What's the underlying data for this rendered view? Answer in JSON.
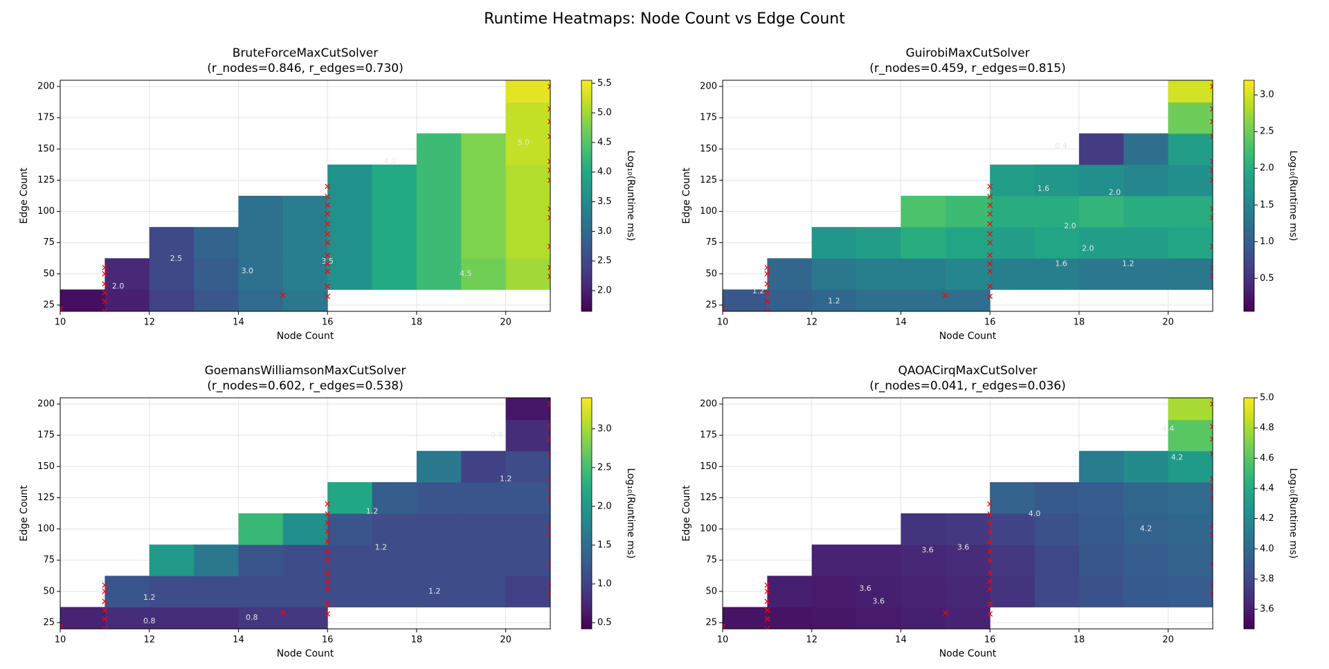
{
  "title": "Runtime Heatmaps: Node Count vs Edge Count",
  "chart_data": [
    {
      "type": "heatmap",
      "title": "BruteForceMaxCutSolver",
      "subtitle": "(r_nodes=0.846, r_edges=0.730)",
      "xlabel": "Node Count",
      "ylabel": "Edge Count",
      "colorbar_label": "Log₁₀(Runtime ms)",
      "colormap": "viridis",
      "grid": true,
      "xlim": [
        10,
        21
      ],
      "ylim": [
        20,
        205
      ],
      "xticks": [
        10,
        12,
        14,
        16,
        18,
        20
      ],
      "yticks": [
        25,
        50,
        75,
        100,
        125,
        150,
        175,
        200
      ],
      "zlim": [
        1.65,
        5.55
      ],
      "zticks": [
        {
          "value": 2,
          "label": "2.0"
        },
        2.5,
        {
          "value": 3,
          "label": "3.0"
        },
        3.5,
        {
          "value": 4,
          "label": "4.0"
        },
        4.5,
        {
          "value": 5,
          "label": "5.0"
        },
        5.5
      ],
      "x": [
        10.5,
        11.5,
        12.5,
        13.5,
        14.5,
        15.5,
        16.5,
        17.5,
        18.5,
        19.5,
        20.5
      ],
      "y": [
        25,
        50,
        75,
        100,
        125,
        150,
        175,
        200
      ],
      "z": [
        [
          1.8,
          2.0,
          2.4,
          2.7,
          3.0,
          3.2,
          null,
          null,
          null,
          null,
          null
        ],
        [
          null,
          2.1,
          2.5,
          2.8,
          3.1,
          3.3,
          3.6,
          4.0,
          4.3,
          4.7,
          5.0
        ],
        [
          null,
          null,
          2.5,
          2.9,
          3.1,
          3.3,
          3.6,
          4.0,
          4.3,
          4.8,
          5.1
        ],
        [
          null,
          null,
          null,
          null,
          3.1,
          3.3,
          3.6,
          4.0,
          4.3,
          4.8,
          5.1
        ],
        [
          null,
          null,
          null,
          null,
          null,
          null,
          3.6,
          4.0,
          4.3,
          4.8,
          5.1
        ],
        [
          null,
          null,
          null,
          null,
          null,
          null,
          null,
          null,
          4.3,
          4.8,
          5.2
        ],
        [
          null,
          null,
          null,
          null,
          null,
          null,
          null,
          null,
          null,
          null,
          5.2
        ],
        [
          null,
          null,
          null,
          null,
          null,
          null,
          null,
          null,
          null,
          null,
          5.4
        ]
      ],
      "contour_labels": [
        {
          "x": 11.3,
          "y": 40,
          "label": "2.0"
        },
        {
          "x": 12.6,
          "y": 62,
          "label": "2.5"
        },
        {
          "x": 14.2,
          "y": 52,
          "label": "3.0"
        },
        {
          "x": 16.0,
          "y": 60,
          "label": "3.5"
        },
        {
          "x": 17.4,
          "y": 140,
          "label": "4.0"
        },
        {
          "x": 19.1,
          "y": 50,
          "label": "4.5"
        },
        {
          "x": 20.4,
          "y": 155,
          "label": "5.0"
        }
      ],
      "samples": {
        "color": "red",
        "x": [
          10,
          11,
          11,
          11,
          11,
          11,
          11,
          15,
          16,
          16,
          16,
          16,
          16,
          16,
          16,
          16,
          16,
          16,
          16,
          16,
          21,
          21,
          21,
          21,
          21,
          21,
          21,
          21,
          21,
          21,
          21,
          21
        ],
        "y": [
          22,
          20,
          28,
          35,
          42,
          50,
          55,
          33,
          32,
          40,
          52,
          58,
          65,
          75,
          82,
          90,
          98,
          105,
          112,
          120,
          48,
          55,
          72,
          95,
          102,
          125,
          133,
          140,
          160,
          172,
          182,
          200
        ]
      }
    },
    {
      "type": "heatmap",
      "title": "GuirobiMaxCutSolver",
      "subtitle": "(r_nodes=0.459, r_edges=0.815)",
      "xlabel": "Node Count",
      "ylabel": "Edge Count",
      "colorbar_label": "Log₁₀(Runtime ms)",
      "colormap": "viridis",
      "grid": true,
      "xlim": [
        10,
        21
      ],
      "ylim": [
        20,
        205
      ],
      "xticks": [
        10,
        12,
        14,
        16,
        18,
        20
      ],
      "yticks": [
        25,
        50,
        75,
        100,
        125,
        150,
        175,
        200
      ],
      "zlim": [
        0.05,
        3.2
      ],
      "zticks": [
        0.5,
        {
          "value": 1,
          "label": "1.0"
        },
        1.5,
        {
          "value": 2,
          "label": "2.0"
        },
        2.5,
        {
          "value": 3,
          "label": "3.0"
        }
      ],
      "x": [
        10.5,
        11.5,
        12.5,
        13.5,
        14.5,
        15.5,
        16.5,
        17.5,
        18.5,
        19.5,
        20.5
      ],
      "y": [
        25,
        50,
        75,
        100,
        125,
        150,
        175,
        200
      ],
      "z": [
        [
          0.9,
          1.0,
          1.1,
          1.2,
          1.2,
          1.2,
          null,
          null,
          null,
          null,
          null
        ],
        [
          null,
          1.1,
          1.3,
          1.4,
          1.4,
          1.5,
          1.4,
          1.4,
          1.3,
          1.3,
          1.3
        ],
        [
          null,
          null,
          1.7,
          1.8,
          2.0,
          1.9,
          1.8,
          1.9,
          1.8,
          1.8,
          1.9
        ],
        [
          null,
          null,
          null,
          null,
          2.3,
          2.2,
          2.0,
          2.0,
          2.1,
          2.0,
          2.0
        ],
        [
          null,
          null,
          null,
          null,
          null,
          null,
          1.8,
          1.7,
          1.6,
          1.5,
          1.6
        ],
        [
          null,
          null,
          null,
          null,
          null,
          null,
          null,
          null,
          0.6,
          1.2,
          1.8
        ],
        [
          null,
          null,
          null,
          null,
          null,
          null,
          null,
          null,
          null,
          null,
          2.5
        ],
        [
          null,
          null,
          null,
          null,
          null,
          null,
          null,
          null,
          null,
          null,
          3.0
        ]
      ],
      "contour_labels": [
        {
          "x": 10.8,
          "y": 36,
          "label": "1.2"
        },
        {
          "x": 12.5,
          "y": 28,
          "label": "1.2"
        },
        {
          "x": 17.6,
          "y": 152,
          "label": "0.4"
        },
        {
          "x": 17.2,
          "y": 118,
          "label": "1.6"
        },
        {
          "x": 18.8,
          "y": 115,
          "label": "2.0"
        },
        {
          "x": 17.8,
          "y": 88,
          "label": "2.0"
        },
        {
          "x": 18.2,
          "y": 70,
          "label": "2.0"
        },
        {
          "x": 17.6,
          "y": 58,
          "label": "1.6"
        },
        {
          "x": 19.1,
          "y": 58,
          "label": "1.2"
        }
      ],
      "samples": {
        "color": "red",
        "x": [
          10,
          11,
          11,
          11,
          11,
          11,
          11,
          15,
          16,
          16,
          16,
          16,
          16,
          16,
          16,
          16,
          16,
          16,
          16,
          16,
          21,
          21,
          21,
          21,
          21,
          21,
          21,
          21,
          21,
          21,
          21,
          21
        ],
        "y": [
          22,
          20,
          28,
          35,
          42,
          50,
          55,
          33,
          32,
          40,
          52,
          58,
          65,
          75,
          82,
          90,
          98,
          105,
          112,
          120,
          48,
          55,
          72,
          95,
          102,
          125,
          133,
          140,
          160,
          172,
          182,
          200
        ]
      }
    },
    {
      "type": "heatmap",
      "title": "GoemansWilliamsonMaxCutSolver",
      "subtitle": "(r_nodes=0.602, r_edges=0.538)",
      "xlabel": "Node Count",
      "ylabel": "Edge Count",
      "colorbar_label": "Log₁₀(Runtime ms)",
      "colormap": "viridis",
      "grid": true,
      "xlim": [
        10,
        21
      ],
      "ylim": [
        20,
        205
      ],
      "xticks": [
        10,
        12,
        14,
        16,
        18,
        20
      ],
      "yticks": [
        25,
        50,
        75,
        100,
        125,
        150,
        175,
        200
      ],
      "zlim": [
        0.42,
        3.4
      ],
      "zticks": [
        0.5,
        {
          "value": 1,
          "label": "1.0"
        },
        1.5,
        {
          "value": 2,
          "label": "2.0"
        },
        2.5,
        {
          "value": 3,
          "label": "3.0"
        }
      ],
      "x": [
        10.5,
        11.5,
        12.5,
        13.5,
        14.5,
        15.5,
        16.5,
        17.5,
        18.5,
        19.5,
        20.5
      ],
      "y": [
        25,
        50,
        75,
        100,
        125,
        150,
        175,
        200
      ],
      "z": [
        [
          0.7,
          0.8,
          0.8,
          0.8,
          0.9,
          0.9,
          null,
          null,
          null,
          null,
          null
        ],
        [
          null,
          1.2,
          1.1,
          1.1,
          1.1,
          1.1,
          1.1,
          1.1,
          1.1,
          1.1,
          1.0
        ],
        [
          null,
          null,
          2.0,
          1.6,
          1.2,
          1.1,
          1.1,
          1.1,
          1.1,
          1.1,
          1.1
        ],
        [
          null,
          null,
          null,
          null,
          2.4,
          1.9,
          1.2,
          1.1,
          1.1,
          1.1,
          1.1
        ],
        [
          null,
          null,
          null,
          null,
          null,
          null,
          2.2,
          1.3,
          1.2,
          1.2,
          1.2
        ],
        [
          null,
          null,
          null,
          null,
          null,
          null,
          null,
          null,
          1.6,
          1.0,
          1.1
        ],
        [
          null,
          null,
          null,
          null,
          null,
          null,
          null,
          null,
          null,
          null,
          0.8
        ],
        [
          null,
          null,
          null,
          null,
          null,
          null,
          null,
          null,
          null,
          null,
          0.6
        ]
      ],
      "contour_labels": [
        {
          "x": 12.0,
          "y": 45,
          "label": "1.2"
        },
        {
          "x": 12.0,
          "y": 26,
          "label": "0.8"
        },
        {
          "x": 14.3,
          "y": 29,
          "label": "0.8"
        },
        {
          "x": 17.0,
          "y": 114,
          "label": "1.2"
        },
        {
          "x": 17.2,
          "y": 85,
          "label": "1.2"
        },
        {
          "x": 18.4,
          "y": 50,
          "label": "1.2"
        },
        {
          "x": 20.0,
          "y": 140,
          "label": "1.2"
        },
        {
          "x": 19.8,
          "y": 175,
          "label": "0.8"
        }
      ],
      "samples": {
        "color": "red",
        "x": [
          10,
          11,
          11,
          11,
          11,
          11,
          11,
          15,
          16,
          16,
          16,
          16,
          16,
          16,
          16,
          16,
          16,
          16,
          16,
          16,
          21,
          21,
          21,
          21,
          21,
          21,
          21,
          21,
          21,
          21,
          21,
          21
        ],
        "y": [
          22,
          20,
          28,
          35,
          42,
          50,
          55,
          33,
          32,
          40,
          52,
          58,
          65,
          75,
          82,
          90,
          98,
          105,
          112,
          120,
          48,
          55,
          72,
          95,
          102,
          125,
          133,
          140,
          160,
          172,
          182,
          200
        ]
      }
    },
    {
      "type": "heatmap",
      "title": "QAOACirqMaxCutSolver",
      "subtitle": "(r_nodes=0.041, r_edges=0.036)",
      "xlabel": "Node Count",
      "ylabel": "Edge Count",
      "colorbar_label": "Log₁₀(Runtime ms)",
      "colormap": "viridis",
      "grid": true,
      "xlim": [
        10,
        21
      ],
      "ylim": [
        20,
        205
      ],
      "xticks": [
        10,
        12,
        14,
        16,
        18,
        20
      ],
      "yticks": [
        25,
        50,
        75,
        100,
        125,
        150,
        175,
        200
      ],
      "zlim": [
        3.47,
        5.0
      ],
      "zticks": [
        3.6,
        3.8,
        {
          "value": 4,
          "label": "4.0"
        },
        4.2,
        4.4,
        4.6,
        4.8,
        {
          "value": 5,
          "label": "5.0"
        }
      ],
      "x": [
        10.5,
        11.5,
        12.5,
        13.5,
        14.5,
        15.5,
        16.5,
        17.5,
        18.5,
        19.5,
        20.5
      ],
      "y": [
        25,
        50,
        75,
        100,
        125,
        150,
        175,
        200
      ],
      "z": [
        [
          3.55,
          3.55,
          3.56,
          3.58,
          3.6,
          3.62,
          null,
          null,
          null,
          null,
          null
        ],
        [
          null,
          3.6,
          3.58,
          3.6,
          3.62,
          3.64,
          3.7,
          3.8,
          3.85,
          3.9,
          3.92
        ],
        [
          null,
          null,
          3.62,
          3.62,
          3.64,
          3.66,
          3.72,
          3.8,
          3.88,
          3.92,
          3.95
        ],
        [
          null,
          null,
          null,
          null,
          3.7,
          3.72,
          3.78,
          3.85,
          3.9,
          3.95,
          3.98
        ],
        [
          null,
          null,
          null,
          null,
          null,
          null,
          3.95,
          3.9,
          3.92,
          3.98,
          4.0
        ],
        [
          null,
          null,
          null,
          null,
          null,
          null,
          null,
          null,
          4.1,
          4.2,
          4.3
        ],
        [
          null,
          null,
          null,
          null,
          null,
          null,
          null,
          null,
          null,
          null,
          4.6
        ],
        [
          null,
          null,
          null,
          null,
          null,
          null,
          null,
          null,
          null,
          null,
          4.8
        ]
      ],
      "contour_labels": [
        {
          "x": 13.2,
          "y": 52,
          "label": "3.6"
        },
        {
          "x": 13.5,
          "y": 42,
          "label": "3.6"
        },
        {
          "x": 14.6,
          "y": 83,
          "label": "3.6"
        },
        {
          "x": 15.4,
          "y": 85,
          "label": "3.6"
        },
        {
          "x": 17.0,
          "y": 112,
          "label": "4.0"
        },
        {
          "x": 19.5,
          "y": 100,
          "label": "4.2"
        },
        {
          "x": 20.0,
          "y": 180,
          "label": "4.4"
        },
        {
          "x": 20.2,
          "y": 157,
          "label": "4.2"
        }
      ],
      "samples": {
        "color": "red",
        "x": [
          10,
          11,
          11,
          11,
          11,
          11,
          11,
          15,
          16,
          16,
          16,
          16,
          16,
          16,
          16,
          16,
          16,
          16,
          16,
          16,
          21,
          21,
          21,
          21,
          21,
          21,
          21,
          21,
          21,
          21,
          21,
          21
        ],
        "y": [
          22,
          20,
          28,
          35,
          42,
          50,
          55,
          33,
          32,
          40,
          52,
          58,
          65,
          75,
          82,
          90,
          98,
          105,
          112,
          120,
          48,
          55,
          72,
          95,
          102,
          125,
          133,
          140,
          160,
          172,
          182,
          200
        ]
      }
    }
  ]
}
